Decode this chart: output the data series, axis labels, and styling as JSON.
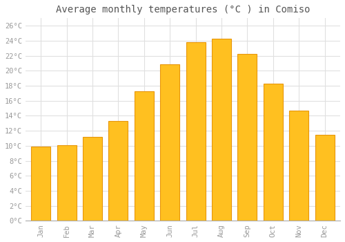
{
  "months": [
    "Jan",
    "Feb",
    "Mar",
    "Apr",
    "May",
    "Jun",
    "Jul",
    "Aug",
    "Sep",
    "Oct",
    "Nov",
    "Dec"
  ],
  "temperatures": [
    9.9,
    10.1,
    11.2,
    13.3,
    17.3,
    20.9,
    23.8,
    24.3,
    22.2,
    18.3,
    14.7,
    11.5
  ],
  "bar_color": "#FFC020",
  "bar_edge_color": "#E8960A",
  "title": "Average monthly temperatures (°C ) in Comiso",
  "ylim": [
    0,
    27
  ],
  "yticks": [
    0,
    2,
    4,
    6,
    8,
    10,
    12,
    14,
    16,
    18,
    20,
    22,
    24,
    26
  ],
  "grid_color": "#e0e0e0",
  "bg_color": "#ffffff",
  "title_fontsize": 10,
  "tick_fontsize": 7.5,
  "tick_color": "#999999",
  "font_family": "monospace"
}
